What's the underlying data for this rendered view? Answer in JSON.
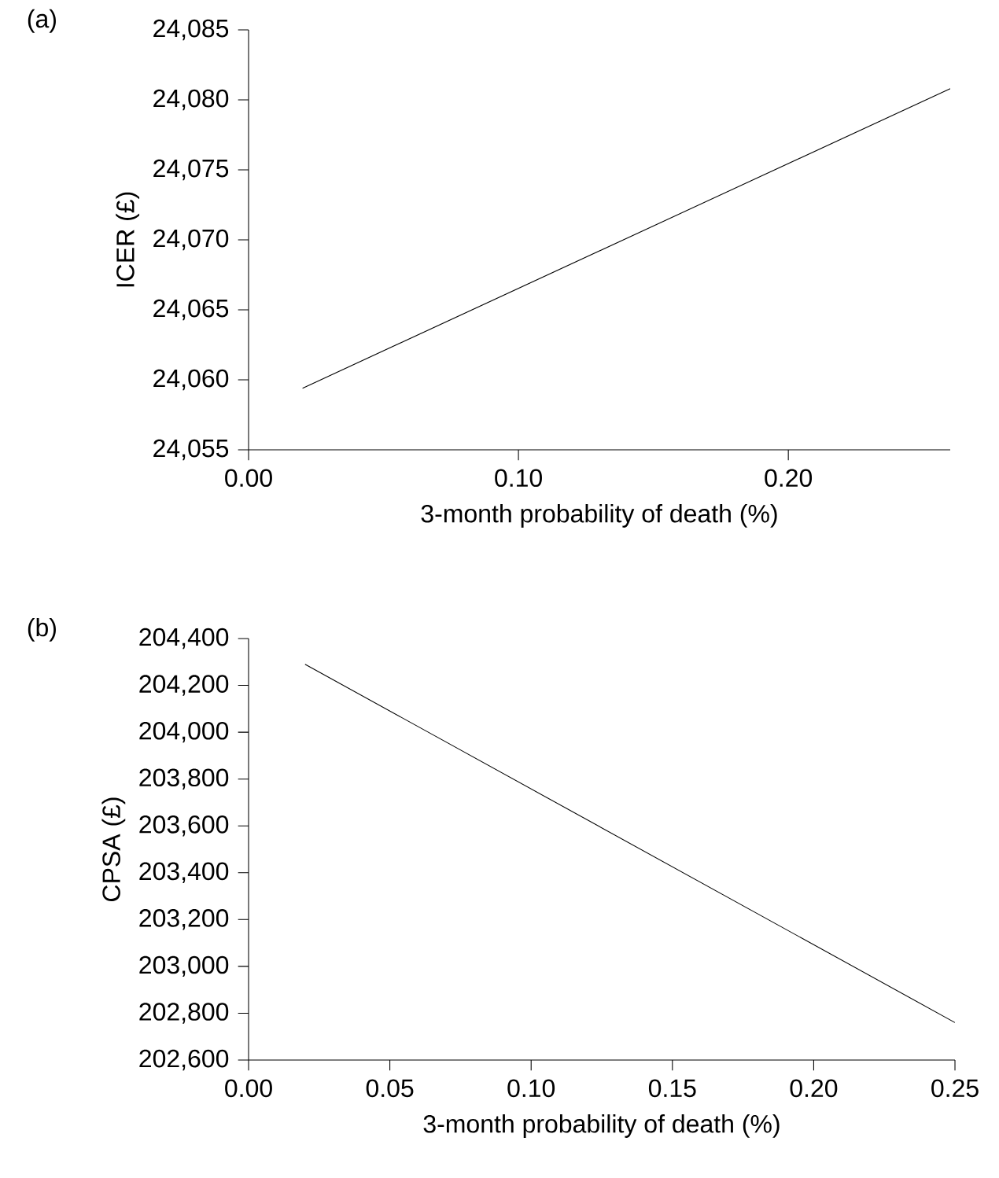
{
  "chart_data": [
    {
      "type": "line",
      "title": "(a)",
      "xlabel": "3-month probability of death (%)",
      "ylabel": "ICER (£)",
      "x": [
        0.02,
        0.26
      ],
      "values": [
        24059.4,
        24080.8
      ],
      "color": "#000000",
      "xlim": [
        0,
        0.26
      ],
      "xticks": [
        {
          "value": 0,
          "label": "0.00"
        },
        {
          "value": 0.1,
          "label": "0.10"
        },
        {
          "value": 0.2,
          "label": "0.20"
        }
      ],
      "ylim": [
        24055,
        24085
      ],
      "yticks": [
        {
          "value": 24055,
          "label": "24,055"
        },
        {
          "value": 24060,
          "label": "24,060"
        },
        {
          "value": 24065,
          "label": "24,065"
        },
        {
          "value": 24070,
          "label": "24,070"
        },
        {
          "value": 24075,
          "label": "24,075"
        },
        {
          "value": 24080,
          "label": "24,080"
        },
        {
          "value": 24085,
          "label": "24,085"
        }
      ]
    },
    {
      "type": "line",
      "title": "(b)",
      "xlabel": "3-month probability of death (%)",
      "ylabel": "CPSA (£)",
      "x": [
        0.02,
        0.25
      ],
      "values": [
        204290,
        202760
      ],
      "color": "#000000",
      "xlim": [
        0,
        0.25
      ],
      "xticks": [
        {
          "value": 0,
          "label": "0.00"
        },
        {
          "value": 0.05,
          "label": "0.05"
        },
        {
          "value": 0.1,
          "label": "0.10"
        },
        {
          "value": 0.15,
          "label": "0.15"
        },
        {
          "value": 0.2,
          "label": "0.20"
        },
        {
          "value": 0.25,
          "label": "0.25"
        }
      ],
      "ylim": [
        202600,
        204400
      ],
      "yticks": [
        {
          "value": 202600,
          "label": "202,600"
        },
        {
          "value": 202800,
          "label": "202,800"
        },
        {
          "value": 203000,
          "label": "203,000"
        },
        {
          "value": 203200,
          "label": "203,200"
        },
        {
          "value": 203400,
          "label": "203,400"
        },
        {
          "value": 203600,
          "label": "203,600"
        },
        {
          "value": 203800,
          "label": "203,800"
        },
        {
          "value": 204000,
          "label": "204,000"
        },
        {
          "value": 204200,
          "label": "204,200"
        },
        {
          "value": 204400,
          "label": "204,400"
        }
      ]
    }
  ]
}
